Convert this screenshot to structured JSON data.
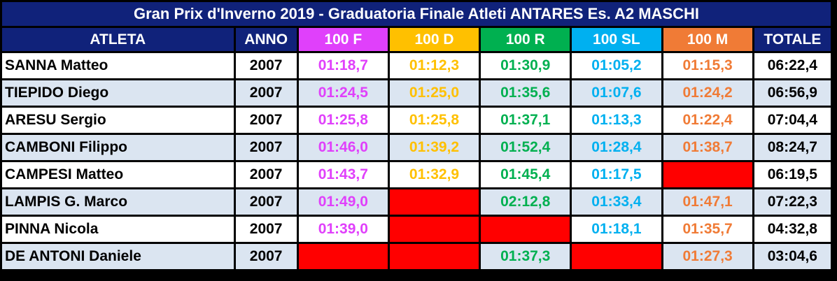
{
  "title": "Gran Prix d'Inverno 2019 - Graduatoria Finale Atleti ANTARES Es. A2 MASCHI",
  "colors": {
    "header_navy": "#10227a",
    "100F": "#e040fb",
    "100D": "#ffc000",
    "100R": "#00b050",
    "100SL": "#00b0f0",
    "100M": "#f07b36",
    "missing": "#ff0000"
  },
  "headers": {
    "atleta": "ATLETA",
    "anno": "ANNO",
    "f": "100 F",
    "d": "100 D",
    "r": "100 R",
    "sl": "100 SL",
    "m": "100 M",
    "totale": "TOTALE"
  },
  "rows": [
    {
      "atleta": "SANNA Matteo",
      "anno": "2007",
      "f": "01:18,7",
      "d": "01:12,3",
      "r": "01:30,9",
      "sl": "01:05,2",
      "m": "01:15,3",
      "totale": "06:22,4"
    },
    {
      "atleta": "TIEPIDO Diego",
      "anno": "2007",
      "f": "01:24,5",
      "d": "01:25,0",
      "r": "01:35,6",
      "sl": "01:07,6",
      "m": "01:24,2",
      "totale": "06:56,9"
    },
    {
      "atleta": "ARESU Sergio",
      "anno": "2007",
      "f": "01:25,8",
      "d": "01:25,8",
      "r": "01:37,1",
      "sl": "01:13,3",
      "m": "01:22,4",
      "totale": "07:04,4"
    },
    {
      "atleta": "CAMBONI Filippo",
      "anno": "2007",
      "f": "01:46,0",
      "d": "01:39,2",
      "r": "01:52,4",
      "sl": "01:28,4",
      "m": "01:38,7",
      "totale": "08:24,7"
    },
    {
      "atleta": "CAMPESI Matteo",
      "anno": "2007",
      "f": "01:43,7",
      "d": "01:32,9",
      "r": "01:45,4",
      "sl": "01:17,5",
      "m": null,
      "totale": "06:19,5"
    },
    {
      "atleta": "LAMPIS G. Marco",
      "anno": "2007",
      "f": "01:49,0",
      "d": null,
      "r": "02:12,8",
      "sl": "01:33,4",
      "m": "01:47,1",
      "totale": "07:22,3"
    },
    {
      "atleta": "PINNA Nicola",
      "anno": "2007",
      "f": "01:39,0",
      "d": null,
      "r": null,
      "sl": "01:18,1",
      "m": "01:35,7",
      "totale": "04:32,8"
    },
    {
      "atleta": "DE ANTONI Daniele",
      "anno": "2007",
      "f": null,
      "d": null,
      "r": "01:37,3",
      "sl": null,
      "m": "01:27,3",
      "totale": "03:04,6"
    }
  ]
}
